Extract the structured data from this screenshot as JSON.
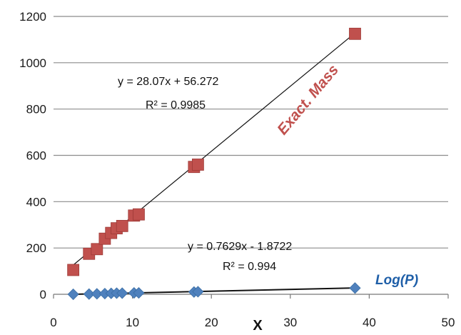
{
  "chart_data": {
    "type": "scatter",
    "title": "",
    "xlabel": "X",
    "ylabel": "",
    "xlim": [
      0,
      50
    ],
    "ylim": [
      0,
      1200
    ],
    "x_ticks": [
      "0",
      "10",
      "20",
      "30",
      "40",
      "50"
    ],
    "y_ticks": [
      "0",
      "200",
      "400",
      "600",
      "800",
      "1000",
      "1200"
    ],
    "grid": "horizontal",
    "legend": "none",
    "series": [
      {
        "name": "Exact. Mass",
        "marker": "square",
        "color": "#c0504d",
        "label_color": "#c0504d",
        "points": [
          {
            "x": 2.5,
            "y": 105
          },
          {
            "x": 4.5,
            "y": 175
          },
          {
            "x": 5.5,
            "y": 195
          },
          {
            "x": 6.5,
            "y": 240
          },
          {
            "x": 7.3,
            "y": 265
          },
          {
            "x": 8.0,
            "y": 285
          },
          {
            "x": 8.7,
            "y": 295
          },
          {
            "x": 10.2,
            "y": 340
          },
          {
            "x": 10.8,
            "y": 345
          },
          {
            "x": 17.8,
            "y": 550
          },
          {
            "x": 18.3,
            "y": 560
          },
          {
            "x": 38.2,
            "y": 1125
          }
        ],
        "trendline": {
          "slope": 28.07,
          "intercept": 56.272,
          "x_range": [
            2.5,
            38.2
          ]
        },
        "equation": "y = 28.07x + 56.272",
        "r2": "R² = 0.9985"
      },
      {
        "name": "Log(P)",
        "marker": "diamond",
        "color": "#4f81bd",
        "label_color": "#1f5fa8",
        "points": [
          {
            "x": 2.5,
            "y": 0
          },
          {
            "x": 4.5,
            "y": 1
          },
          {
            "x": 5.5,
            "y": 2
          },
          {
            "x": 6.5,
            "y": 3
          },
          {
            "x": 7.3,
            "y": 4
          },
          {
            "x": 8.0,
            "y": 5
          },
          {
            "x": 8.7,
            "y": 5
          },
          {
            "x": 10.2,
            "y": 6
          },
          {
            "x": 10.8,
            "y": 6
          },
          {
            "x": 17.8,
            "y": 10
          },
          {
            "x": 18.3,
            "y": 11
          },
          {
            "x": 38.2,
            "y": 27
          }
        ],
        "trendline": {
          "slope": 0.7629,
          "intercept": -1.8722,
          "x_range": [
            2.5,
            38.2
          ]
        },
        "equation": "y = 0.7629x - 1.8722",
        "r2": "R² = 0.994"
      }
    ]
  }
}
